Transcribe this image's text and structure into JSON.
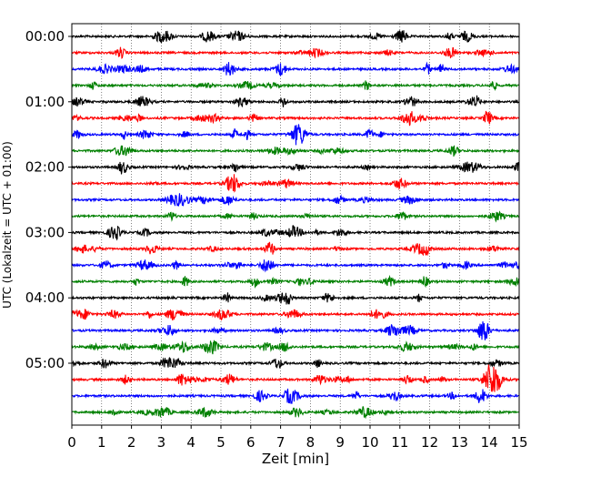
{
  "chart_data": {
    "type": "line",
    "title": "",
    "xlabel": "Zeit  [min]",
    "ylabel": "UTC (Lokalzeit = UTC + 01:00)",
    "xlim": [
      0,
      15
    ],
    "x_ticks": [
      0,
      1,
      2,
      3,
      4,
      5,
      6,
      7,
      8,
      9,
      10,
      11,
      12,
      13,
      14,
      15
    ],
    "x_grid": true,
    "y_ticks": [
      {
        "label": "00:00",
        "trace_index": 0
      },
      {
        "label": "01:00",
        "trace_index": 4
      },
      {
        "label": "02:00",
        "trace_index": 8
      },
      {
        "label": "03:00",
        "trace_index": 12
      },
      {
        "label": "04:00",
        "trace_index": 16
      },
      {
        "label": "05:00",
        "trace_index": 20
      }
    ],
    "trace_interval_min": 15,
    "trace_colors": [
      "#000000",
      "#ff0000",
      "#0000ff",
      "#008000"
    ],
    "trace_count": 24,
    "notable_events": [
      {
        "trace_index": 21,
        "x_min": 14.1,
        "relative_amplitude": 1.0
      }
    ]
  }
}
